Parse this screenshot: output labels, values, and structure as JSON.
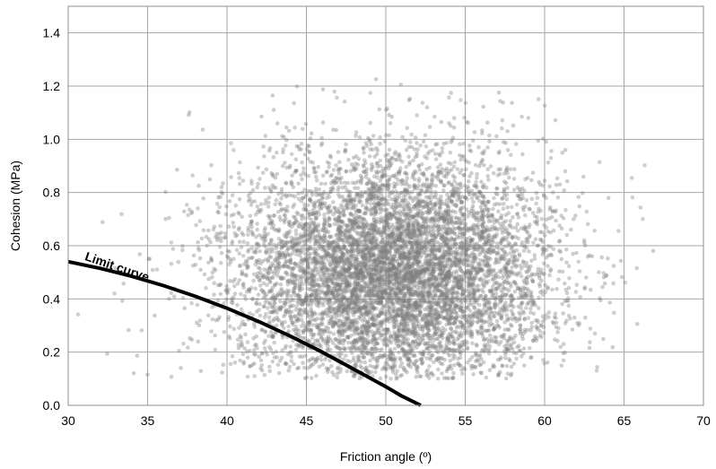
{
  "chart_data": {
    "type": "scatter",
    "title": "",
    "xlabel": "Friction angle (º)",
    "ylabel": "Cohesion (MPa)",
    "xlim": [
      30,
      70
    ],
    "ylim": [
      0,
      1.5
    ],
    "xticks": [
      30,
      35,
      40,
      45,
      50,
      55,
      60,
      65,
      70
    ],
    "yticks": [
      0.0,
      0.2,
      0.4,
      0.6,
      0.8,
      1.0,
      1.2,
      1.4
    ],
    "ytick_labels": [
      "0.0",
      "0.2",
      "0.4",
      "0.6",
      "0.8",
      "1.0",
      "1.2",
      "1.4"
    ],
    "grid": true,
    "legend": "none",
    "scatter_cloud": {
      "description_of_distribution": "approximately 8000 semi-transparent gray points",
      "count": 8000,
      "x_mean": 50.5,
      "x_std": 5.0,
      "y_mean": 0.5,
      "y_std": 0.2,
      "color": "#7f7f7f"
    },
    "limit_curve": {
      "label": "Limit curve",
      "x": [
        30,
        32,
        34,
        36,
        38,
        40,
        42,
        44,
        46,
        48,
        50,
        51,
        52.2
      ],
      "y": [
        0.54,
        0.515,
        0.485,
        0.45,
        0.41,
        0.365,
        0.315,
        0.26,
        0.2,
        0.135,
        0.07,
        0.035,
        0.0
      ],
      "color": "#000000"
    }
  }
}
